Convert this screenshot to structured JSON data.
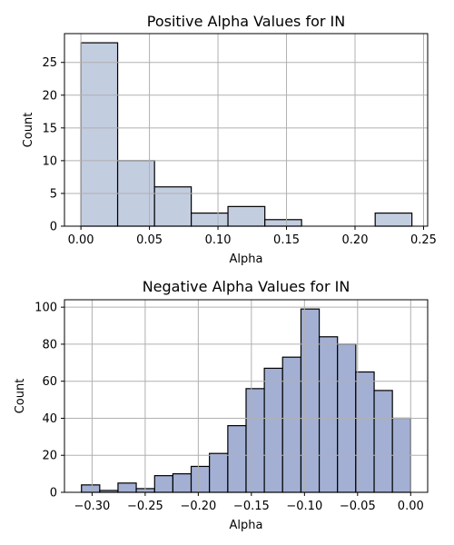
{
  "chart_data": [
    {
      "type": "bar",
      "title": "Positive Alpha Values for IN",
      "xlabel": "Alpha",
      "ylabel": "Count",
      "bins": [
        {
          "x0": 0.0,
          "x1": 0.0268,
          "count": 28
        },
        {
          "x0": 0.0268,
          "x1": 0.0537,
          "count": 10
        },
        {
          "x0": 0.0537,
          "x1": 0.0805,
          "count": 6
        },
        {
          "x0": 0.0805,
          "x1": 0.1073,
          "count": 2
        },
        {
          "x0": 0.1073,
          "x1": 0.1342,
          "count": 3
        },
        {
          "x0": 0.1342,
          "x1": 0.161,
          "count": 1
        },
        {
          "x0": 0.161,
          "x1": 0.1878,
          "count": 0
        },
        {
          "x0": 0.1878,
          "x1": 0.2147,
          "count": 0
        },
        {
          "x0": 0.2147,
          "x1": 0.2415,
          "count": 2
        }
      ],
      "xlim": [
        -0.012,
        0.253
      ],
      "ylim": [
        0,
        29.4
      ],
      "xticks": [
        0.0,
        0.05,
        0.1,
        0.15,
        0.2,
        0.25
      ],
      "xtick_labels": [
        "0.00",
        "0.05",
        "0.10",
        "0.15",
        "0.20",
        "0.25"
      ],
      "yticks": [
        0,
        5,
        10,
        15,
        20,
        25
      ],
      "ytick_labels": [
        "0",
        "5",
        "10",
        "15",
        "20",
        "25"
      ],
      "grid": true,
      "bar_color": "#c3cde0",
      "edge_color": "#000000"
    },
    {
      "type": "bar",
      "title": "Negative Alpha Values for IN",
      "xlabel": "Alpha",
      "ylabel": "Count",
      "bins": [
        {
          "x0": -0.31,
          "x1": -0.2928,
          "count": 4
        },
        {
          "x0": -0.2928,
          "x1": -0.2756,
          "count": 1
        },
        {
          "x0": -0.2756,
          "x1": -0.2584,
          "count": 5
        },
        {
          "x0": -0.2584,
          "x1": -0.2411,
          "count": 2
        },
        {
          "x0": -0.2411,
          "x1": -0.2239,
          "count": 9
        },
        {
          "x0": -0.2239,
          "x1": -0.2067,
          "count": 10
        },
        {
          "x0": -0.2067,
          "x1": -0.1895,
          "count": 14
        },
        {
          "x0": -0.1895,
          "x1": -0.1722,
          "count": 21
        },
        {
          "x0": -0.1722,
          "x1": -0.155,
          "count": 36
        },
        {
          "x0": -0.155,
          "x1": -0.1378,
          "count": 56
        },
        {
          "x0": -0.1378,
          "x1": -0.1206,
          "count": 67
        },
        {
          "x0": -0.1206,
          "x1": -0.1033,
          "count": 73
        },
        {
          "x0": -0.1033,
          "x1": -0.0861,
          "count": 99
        },
        {
          "x0": -0.0861,
          "x1": -0.0689,
          "count": 84
        },
        {
          "x0": -0.0689,
          "x1": -0.0517,
          "count": 80
        },
        {
          "x0": -0.0517,
          "x1": -0.0344,
          "count": 65
        },
        {
          "x0": -0.0344,
          "x1": -0.0172,
          "count": 55
        },
        {
          "x0": -0.0172,
          "x1": 0.0,
          "count": 40
        },
        {
          "x0": 0.0,
          "x1": 0.0,
          "count": 0
        }
      ],
      "xlim": [
        -0.326,
        0.016
      ],
      "ylim": [
        0,
        104
      ],
      "xticks": [
        -0.3,
        -0.25,
        -0.2,
        -0.15,
        -0.1,
        -0.05,
        0.0
      ],
      "xtick_labels": [
        "−0.30",
        "−0.25",
        "−0.20",
        "−0.15",
        "−0.10",
        "−0.05",
        "0.00"
      ],
      "yticks": [
        0,
        20,
        40,
        60,
        80,
        100
      ],
      "ytick_labels": [
        "0",
        "20",
        "40",
        "60",
        "80",
        "100"
      ],
      "grid": true,
      "bar_color": "#a3b0d4",
      "edge_color": "#000000"
    }
  ]
}
